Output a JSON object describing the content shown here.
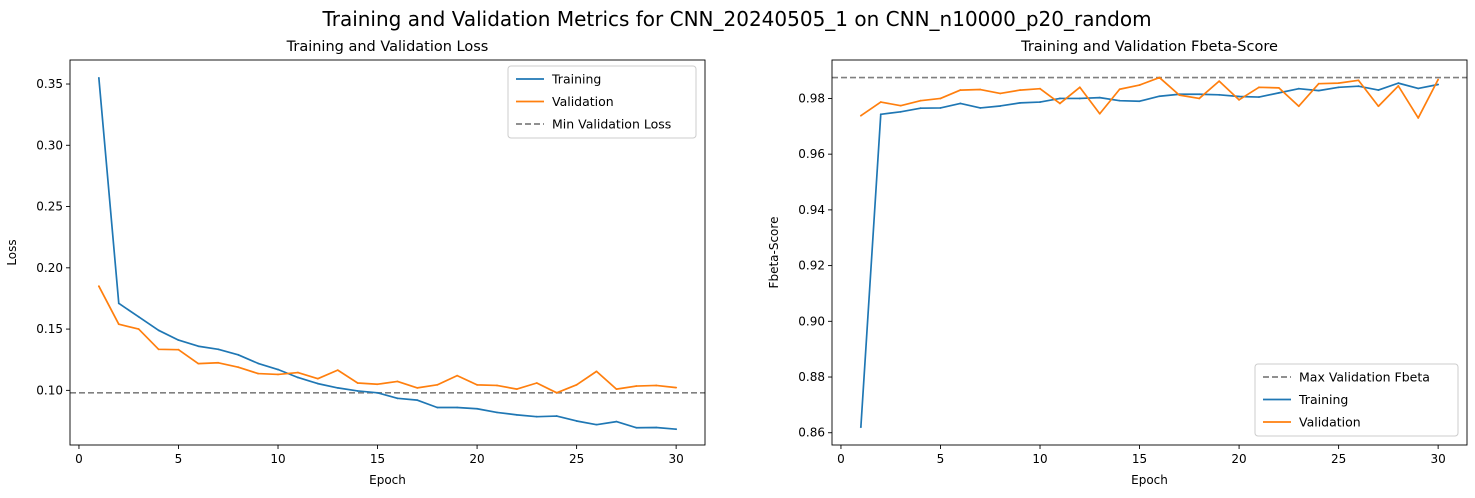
{
  "figure": {
    "suptitle": "Training and Validation Metrics for CNN_20240505_1 on CNN_n10000_p20_random"
  },
  "colors": {
    "training": "#1f77b4",
    "validation": "#ff7f0e",
    "reference": "#808080"
  },
  "chart_data": [
    {
      "type": "line",
      "title": "Training and Validation Loss",
      "xlabel": "Epoch",
      "ylabel": "Loss",
      "xlim": [
        -0.45,
        31.45
      ],
      "ylim": [
        0.0554,
        0.3696
      ],
      "xticks": [
        0,
        5,
        10,
        15,
        20,
        25,
        30
      ],
      "yticks": [
        0.1,
        0.15,
        0.2,
        0.25,
        0.3,
        0.35
      ],
      "ytick_decimals": 2,
      "grid": false,
      "legend": "top-right",
      "x": [
        1,
        2,
        3,
        4,
        5,
        6,
        7,
        8,
        9,
        10,
        11,
        12,
        13,
        14,
        15,
        16,
        17,
        18,
        19,
        20,
        21,
        22,
        23,
        24,
        25,
        26,
        27,
        28,
        29,
        30
      ],
      "series": [
        {
          "name": "Training",
          "color_key": "training",
          "values": [
            0.355,
            0.171,
            0.16,
            0.149,
            0.141,
            0.136,
            0.1335,
            0.129,
            0.122,
            0.117,
            0.1105,
            0.1055,
            0.102,
            0.0995,
            0.098,
            0.0935,
            0.092,
            0.086,
            0.086,
            0.085,
            0.082,
            0.08,
            0.0785,
            0.079,
            0.075,
            0.072,
            0.0745,
            0.0695,
            0.0697,
            0.0683
          ]
        },
        {
          "name": "Validation",
          "color_key": "validation",
          "values": [
            0.185,
            0.154,
            0.15,
            0.1335,
            0.1332,
            0.1218,
            0.1225,
            0.1189,
            0.1137,
            0.113,
            0.1145,
            0.1095,
            0.1165,
            0.106,
            0.105,
            0.1073,
            0.102,
            0.1045,
            0.112,
            0.1045,
            0.104,
            0.101,
            0.106,
            0.098,
            0.1045,
            0.1155,
            0.101,
            0.1035,
            0.104,
            0.1022
          ]
        }
      ],
      "reference_lines": [
        {
          "name": "Min Validation Loss",
          "orientation": "horizontal",
          "value": 0.098,
          "style": "dashed",
          "color_key": "reference"
        }
      ]
    },
    {
      "type": "line",
      "title": "Training and Validation Fbeta-Score",
      "xlabel": "Epoch",
      "ylabel": "Fbeta-Score",
      "xlim": [
        -0.45,
        31.45
      ],
      "ylim": [
        0.8556,
        0.9938
      ],
      "xticks": [
        0,
        5,
        10,
        15,
        20,
        25,
        30
      ],
      "yticks": [
        0.86,
        0.88,
        0.9,
        0.92,
        0.94,
        0.96,
        0.98
      ],
      "ytick_decimals": 2,
      "grid": false,
      "legend": "bottom-right",
      "x": [
        1,
        2,
        3,
        4,
        5,
        6,
        7,
        8,
        9,
        10,
        11,
        12,
        13,
        14,
        15,
        16,
        17,
        18,
        19,
        20,
        21,
        22,
        23,
        24,
        25,
        26,
        27,
        28,
        29,
        30
      ],
      "series": [
        {
          "name": "Training",
          "color_key": "training",
          "values": [
            0.862,
            0.9743,
            0.9752,
            0.9765,
            0.9766,
            0.9782,
            0.9766,
            0.9773,
            0.9784,
            0.9787,
            0.98,
            0.98,
            0.9803,
            0.9792,
            0.979,
            0.9808,
            0.9815,
            0.9815,
            0.9813,
            0.9807,
            0.9805,
            0.982,
            0.9835,
            0.9828,
            0.984,
            0.9844,
            0.983,
            0.9855,
            0.9836,
            0.985
          ]
        },
        {
          "name": "Validation",
          "color_key": "validation",
          "values": [
            0.9738,
            0.9787,
            0.9774,
            0.9792,
            0.98,
            0.983,
            0.9832,
            0.9818,
            0.983,
            0.9835,
            0.9782,
            0.984,
            0.9745,
            0.9833,
            0.9848,
            0.9875,
            0.9812,
            0.98,
            0.9862,
            0.9795,
            0.984,
            0.9838,
            0.9772,
            0.9853,
            0.9855,
            0.9865,
            0.9772,
            0.9845,
            0.973,
            0.9868
          ]
        }
      ],
      "reference_lines": [
        {
          "name": "Max Validation Fbeta",
          "orientation": "horizontal",
          "value": 0.9875,
          "style": "dashed",
          "color_key": "reference"
        }
      ]
    }
  ]
}
